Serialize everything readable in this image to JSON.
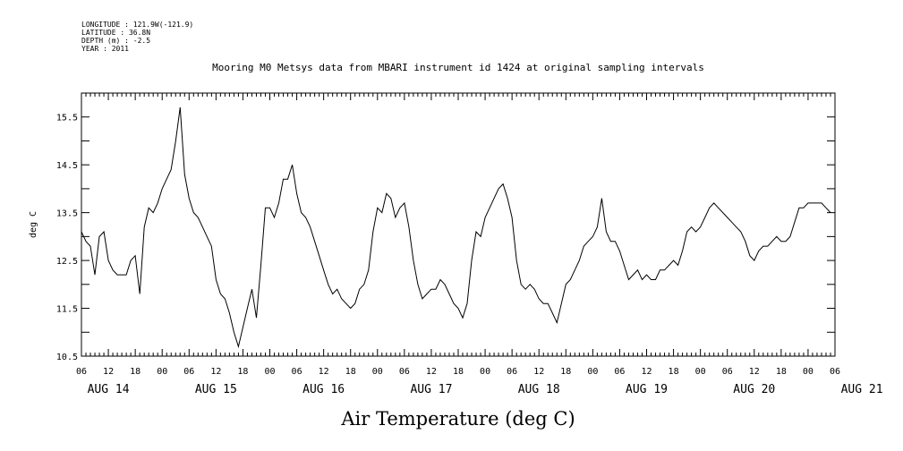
{
  "meta": {
    "longitude": "LONGITUDE : 121.9W(-121.9)",
    "latitude": "LATITUDE : 36.8N",
    "depth": "DEPTH (m) : -2.5",
    "year": "YEAR : 2011"
  },
  "chart_data": {
    "type": "line",
    "title": "Mooring M0 Metsys data from MBARI instrument id 1424 at original sampling intervals",
    "xlabel": "Air Temperature (deg C)",
    "ylabel": "deg C",
    "ylim": [
      10.5,
      16.0
    ],
    "yticks": [
      "10.5",
      "11.5",
      "12.5",
      "13.5",
      "14.5",
      "15.5"
    ],
    "xlim_hours": [
      0,
      168
    ],
    "x_hour_ticks": [
      "06",
      "12",
      "18",
      "00",
      "06",
      "12",
      "18",
      "00",
      "06",
      "12",
      "18",
      "00",
      "06",
      "12",
      "18",
      "00",
      "06",
      "12",
      "18",
      "00",
      "06",
      "12",
      "18",
      "00",
      "06",
      "12",
      "18",
      "00",
      "06"
    ],
    "x_day_labels": [
      "AUG 14",
      "AUG 15",
      "AUG 16",
      "AUG 17",
      "AUG 18",
      "AUG 19",
      "AUG 20",
      "AUG 21"
    ],
    "grid": false,
    "series": [
      {
        "x_hours_since_aug14_06": [
          0,
          1,
          2,
          3,
          4,
          5,
          6,
          7,
          8,
          9,
          10,
          11,
          12,
          13,
          14,
          15,
          16,
          17,
          18,
          19,
          20,
          21,
          22,
          23,
          24,
          25,
          26,
          27,
          28,
          29,
          30,
          31,
          32,
          33,
          34,
          35,
          36,
          37,
          38,
          39,
          40,
          41,
          42,
          43,
          44,
          45,
          46,
          47,
          48,
          49,
          50,
          51,
          52,
          53,
          54,
          55,
          56,
          57,
          58,
          59,
          60,
          61,
          62,
          63,
          64,
          65,
          66,
          67,
          68,
          69,
          70,
          71,
          72,
          73,
          74,
          75,
          76,
          77,
          78,
          79,
          80,
          81,
          82,
          83,
          84,
          85,
          86,
          87,
          88,
          89,
          90,
          91,
          92,
          93,
          94,
          95,
          96,
          97,
          98,
          99,
          100,
          101,
          102,
          103,
          104,
          105,
          106,
          107,
          108,
          109,
          110,
          111,
          112,
          113,
          114,
          115,
          116,
          117,
          118,
          119,
          120,
          121,
          122,
          123,
          124,
          125,
          126,
          127,
          128,
          129,
          130,
          131,
          132,
          133,
          134,
          135,
          136,
          137,
          138,
          139,
          140,
          141,
          142,
          143,
          144,
          145,
          146,
          147,
          148,
          149,
          150,
          151,
          152,
          153,
          154,
          155,
          156,
          157,
          158,
          159,
          160,
          161,
          162,
          163,
          164,
          165,
          166,
          167
        ],
        "values": [
          13.1,
          12.9,
          12.8,
          12.2,
          13.0,
          13.1,
          12.5,
          12.3,
          12.2,
          12.2,
          12.2,
          12.5,
          12.6,
          11.8,
          13.2,
          13.6,
          13.5,
          13.7,
          14.0,
          14.2,
          14.4,
          15.0,
          15.7,
          14.3,
          13.8,
          13.5,
          13.4,
          13.2,
          13.0,
          12.8,
          12.1,
          11.8,
          11.7,
          11.4,
          11.0,
          10.7,
          11.1,
          11.5,
          11.9,
          11.3,
          12.4,
          13.6,
          13.6,
          13.4,
          13.7,
          14.2,
          14.2,
          14.5,
          13.9,
          13.5,
          13.4,
          13.2,
          12.9,
          12.6,
          12.3,
          12.0,
          11.8,
          11.9,
          11.7,
          11.6,
          11.5,
          11.6,
          11.9,
          12.0,
          12.3,
          13.1,
          13.6,
          13.5,
          13.9,
          13.8,
          13.4,
          13.6,
          13.7,
          13.2,
          12.5,
          12.0,
          11.7,
          11.8,
          11.9,
          11.9,
          12.1,
          12.0,
          11.8,
          11.6,
          11.5,
          11.3,
          11.6,
          12.5,
          13.1,
          13.0,
          13.4,
          13.6,
          13.8,
          14.0,
          14.1,
          13.8,
          13.4,
          12.5,
          12.0,
          11.9,
          12.0,
          11.9,
          11.7,
          11.6,
          11.6,
          11.4,
          11.2,
          11.6,
          12.0,
          12.1,
          12.3,
          12.5,
          12.8,
          12.9,
          13.0,
          13.2,
          13.8,
          13.1,
          12.9,
          12.9,
          12.7,
          12.4,
          12.1,
          12.2,
          12.3,
          12.1,
          12.2,
          12.1,
          12.1,
          12.3,
          12.3,
          12.4,
          12.5,
          12.4,
          12.7,
          13.1,
          13.2,
          13.1,
          13.2,
          13.4,
          13.6,
          13.7,
          13.6,
          13.5,
          13.4,
          13.3,
          13.2,
          13.1,
          12.9,
          12.6,
          12.5,
          12.7,
          12.8,
          12.8,
          12.9,
          13.0,
          12.9,
          12.9,
          13.0,
          13.3,
          13.6,
          13.6,
          13.7,
          13.7,
          13.7,
          13.7,
          13.6,
          13.5
        ]
      }
    ]
  }
}
